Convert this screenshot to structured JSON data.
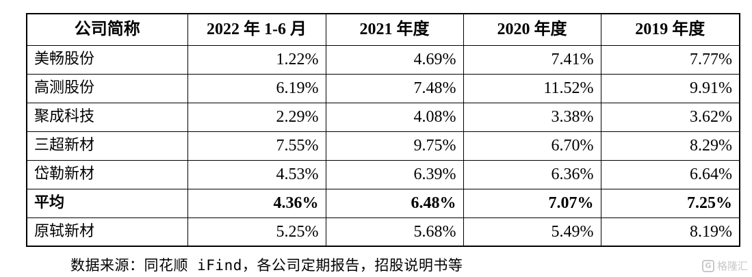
{
  "table": {
    "headers": [
      "公司简称",
      "2022 年 1-6 月",
      "2021 年度",
      "2020 年度",
      "2019 年度"
    ],
    "rows": [
      {
        "name": "美畅股份",
        "values": [
          "1.22%",
          "4.69%",
          "7.41%",
          "7.77%"
        ]
      },
      {
        "name": "高测股份",
        "values": [
          "6.19%",
          "7.48%",
          "11.52%",
          "9.91%"
        ]
      },
      {
        "name": "聚成科技",
        "values": [
          "2.29%",
          "4.08%",
          "3.38%",
          "3.62%"
        ]
      },
      {
        "name": "三超新材",
        "values": [
          "7.55%",
          "9.75%",
          "6.70%",
          "8.29%"
        ]
      },
      {
        "name": "岱勒新材",
        "values": [
          "4.53%",
          "6.39%",
          "6.36%",
          "6.64%"
        ]
      },
      {
        "name": "平均",
        "values": [
          "4.36%",
          "6.48%",
          "7.07%",
          "7.25%"
        ],
        "bold": true
      },
      {
        "name": "原轼新材",
        "values": [
          "5.25%",
          "5.68%",
          "5.49%",
          "8.19%"
        ]
      }
    ]
  },
  "source_note": "数据来源：同花顺 iFind，各公司定期报告，招股说明书等",
  "watermark": {
    "logo_glyph": "G",
    "text": "格隆汇"
  }
}
